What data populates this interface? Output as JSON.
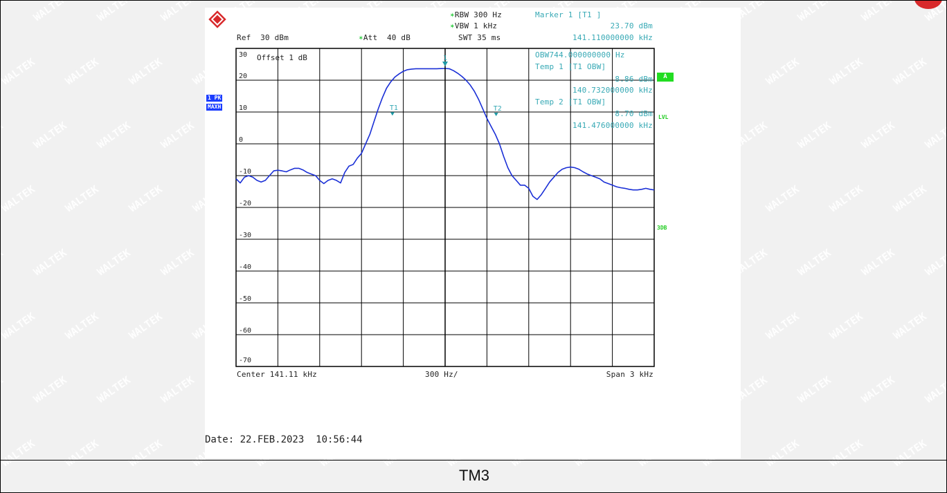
{
  "header": {
    "rbw": "RBW 300 Hz",
    "vbw": "VBW 1 kHz",
    "swt": "SWT 35 ms",
    "ref": "Ref  30 dBm",
    "att": "Att  40 dB",
    "marker_title": "Marker 1 [T1 ]",
    "marker_level": "23.70 dBm",
    "marker_freq": "141.110000000 kHz",
    "offset": "Offset  1 dB"
  },
  "readout": {
    "obw": "OBW744.000000000 Hz",
    "temp1_title": "Temp 1 [T1 OBW]",
    "temp1_level": "8.86 dBm",
    "temp1_freq": "140.732000000 kHz",
    "temp2_title": "Temp 2 [T1 OBW]",
    "temp2_level": "8.70 dBm",
    "temp2_freq": "141.476000000 kHz"
  },
  "side": {
    "trace_mode_1": "1 PK",
    "trace_mode_2": "MAXH",
    "box_a": "A",
    "lvl": "LVL",
    "db3": "3DB"
  },
  "footer": {
    "center": "Center 141.11 kHz",
    "div": "300 Hz/",
    "span": "Span 3 kHz",
    "date": "Date: 22.FEB.2023  10:56:44"
  },
  "caption": "TM3",
  "watermark_text": "WALTEK",
  "colors": {
    "trace": "#1a2fd6",
    "marker": "#1f9aa6",
    "annotation": "#37a9b5",
    "status_green": "#22dd22"
  },
  "chart_data": {
    "type": "line",
    "title": "",
    "xlabel": "",
    "ylabel": "",
    "xlim": [
      139.61,
      142.61
    ],
    "ylim": [
      -70,
      30
    ],
    "x_unit": "kHz",
    "y_unit": "dBm",
    "y_tick_labels": [
      "30",
      "20",
      "10",
      "0",
      "-10",
      "-20",
      "-30",
      "-40",
      "-50",
      "-60",
      "-70"
    ],
    "grid": true,
    "series": [
      {
        "x": [
          139.61,
          139.64,
          139.67,
          139.7,
          139.73,
          139.76,
          139.79,
          139.82,
          139.85,
          139.88,
          139.91,
          139.94,
          139.97,
          140.0,
          140.03,
          140.06,
          140.09,
          140.12,
          140.15,
          140.18,
          140.21,
          140.24,
          140.27,
          140.3,
          140.33,
          140.36,
          140.39,
          140.42,
          140.45,
          140.48,
          140.51,
          140.54,
          140.57,
          140.6,
          140.63,
          140.66,
          140.69,
          140.72,
          140.75,
          140.78,
          140.81,
          140.84,
          140.87,
          140.9,
          140.93,
          140.96,
          140.99,
          141.02,
          141.05,
          141.08,
          141.11,
          141.14,
          141.17,
          141.2,
          141.23,
          141.26,
          141.29,
          141.32,
          141.35,
          141.38,
          141.41,
          141.44,
          141.47,
          141.5,
          141.53,
          141.56,
          141.59,
          141.62,
          141.65,
          141.68,
          141.71,
          141.74,
          141.77,
          141.8,
          141.83,
          141.86,
          141.89,
          141.92,
          141.95,
          141.98,
          142.01,
          142.04,
          142.07,
          142.1,
          142.13,
          142.16,
          142.19,
          142.22,
          142.25,
          142.28,
          142.31,
          142.34,
          142.37,
          142.4,
          142.43,
          142.46,
          142.49,
          142.52,
          142.55,
          142.58,
          142.61
        ],
        "y": [
          -11.0,
          -12.3,
          -10.5,
          -10.0,
          -10.5,
          -11.5,
          -12.0,
          -11.5,
          -10.0,
          -8.5,
          -8.3,
          -8.5,
          -8.8,
          -8.2,
          -7.7,
          -7.7,
          -8.2,
          -9.0,
          -9.5,
          -10.0,
          -11.5,
          -12.5,
          -11.5,
          -11.0,
          -11.5,
          -12.3,
          -9.0,
          -7.0,
          -6.5,
          -4.5,
          -3.0,
          0.0,
          3.0,
          7.0,
          11.0,
          14.5,
          17.5,
          19.5,
          21.0,
          22.0,
          22.8,
          23.3,
          23.5,
          23.6,
          23.6,
          23.6,
          23.6,
          23.6,
          23.6,
          23.65,
          23.7,
          23.6,
          23.0,
          22.2,
          21.2,
          20.0,
          18.5,
          16.5,
          14.0,
          11.0,
          8.0,
          5.5,
          3.0,
          0.0,
          -4.0,
          -7.5,
          -10.0,
          -11.5,
          -13.0,
          -13.0,
          -14.0,
          -16.5,
          -17.5,
          -16.0,
          -14.0,
          -12.0,
          -10.5,
          -9.0,
          -8.0,
          -7.5,
          -7.3,
          -7.5,
          -8.0,
          -8.8,
          -9.5,
          -10.0,
          -10.5,
          -11.0,
          -12.0,
          -12.5,
          -13.0,
          -13.5,
          -13.8,
          -14.0,
          -14.3,
          -14.5,
          -14.5,
          -14.3,
          -14.0,
          -14.3,
          -14.5
        ]
      }
    ],
    "markers": [
      {
        "label": "1",
        "x": 141.11,
        "y": 23.7
      },
      {
        "label": "T1",
        "x": 140.732,
        "y": 8.86
      },
      {
        "label": "T2",
        "x": 141.476,
        "y": 8.7
      }
    ]
  }
}
